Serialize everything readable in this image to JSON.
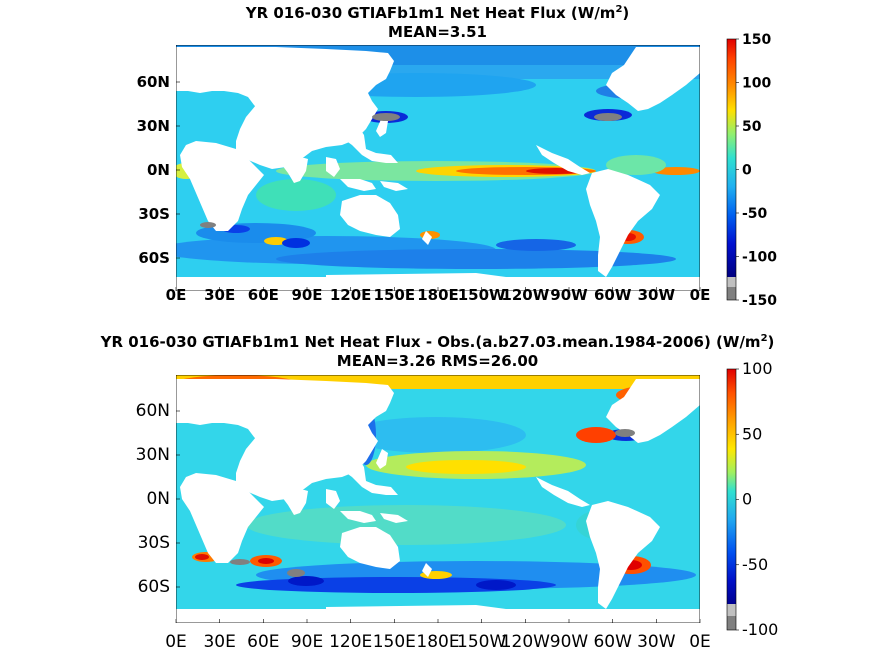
{
  "chart_data": [
    {
      "type": "heatmap",
      "title_prefix": "YR 016-030 GTIAFb1m1  Net Heat Flux (W/m",
      "title_sup": "2",
      "title_suffix": ")",
      "subtitle": "MEAN=3.51",
      "x_ticks": [
        "0E",
        "30E",
        "60E",
        "90E",
        "120E",
        "150E",
        "180E",
        "150W",
        "120W",
        "90W",
        "60W",
        "30W",
        "0E"
      ],
      "y_ticks": [
        "60N",
        "30N",
        "0N",
        "30S",
        "60S"
      ],
      "colorbar": {
        "range": [
          -150,
          150
        ],
        "ticks": [
          "150",
          "100",
          "50",
          "0",
          "-50",
          "-100",
          "-150"
        ]
      },
      "mean": 3.51
    },
    {
      "type": "heatmap",
      "title_prefix": "YR 016-030 GTIAFb1m1  Net Heat Flux - Obs.(a.b27.03.mean.1984-2006) (W/m",
      "title_sup": "2",
      "title_suffix": ")",
      "subtitle": "MEAN=3.26 RMS=26.00",
      "x_ticks": [
        "0E",
        "30E",
        "60E",
        "90E",
        "120E",
        "150E",
        "180E",
        "150W",
        "120W",
        "90W",
        "60W",
        "30W",
        "0E"
      ],
      "y_ticks": [
        "60N",
        "30N",
        "0N",
        "30S",
        "60S"
      ],
      "colorbar": {
        "range": [
          -100,
          100
        ],
        "ticks": [
          "100",
          "50",
          "0",
          "-50",
          "-100"
        ]
      },
      "mean": 3.26,
      "rms": 26.0
    }
  ],
  "colors": {
    "ocean_base": "#2fd0f0",
    "land": "#ffffff",
    "missing": "#808080"
  }
}
